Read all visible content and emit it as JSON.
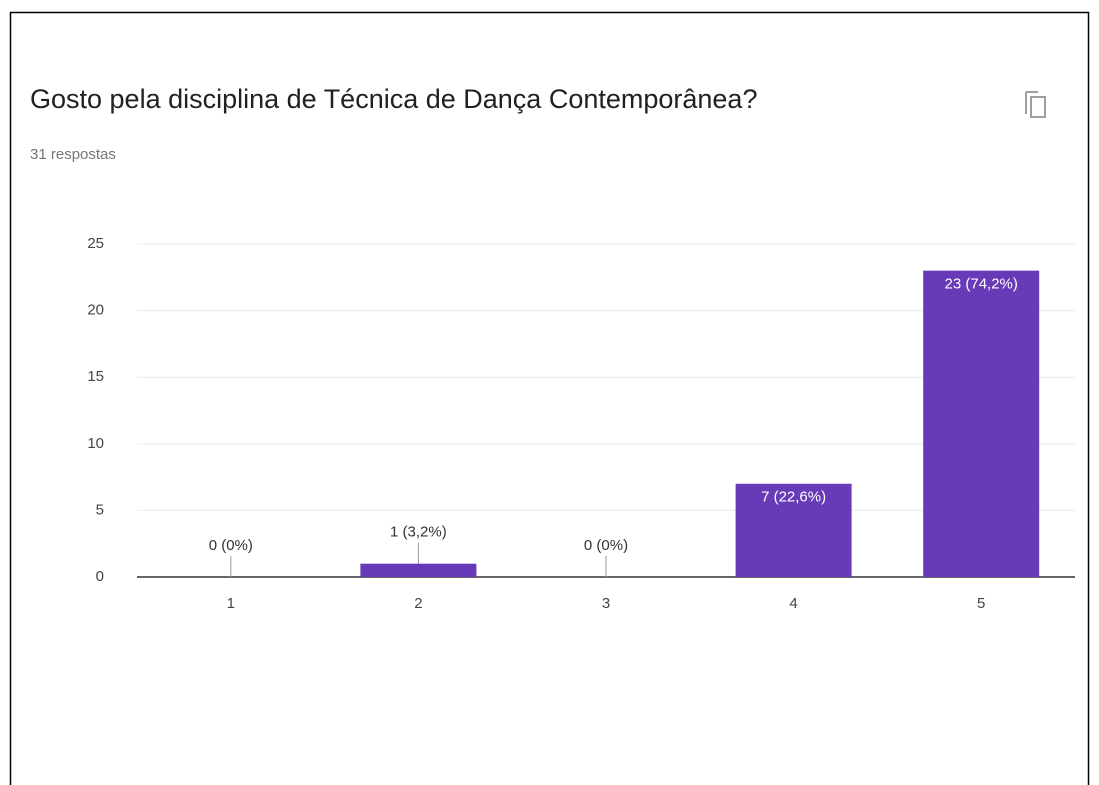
{
  "chart_data": {
    "type": "bar",
    "title": "Gosto pela disciplina de Técnica de Dança Contemporânea?",
    "subtitle": "31 respostas",
    "categories": [
      "1",
      "2",
      "3",
      "4",
      "5"
    ],
    "values": [
      0,
      1,
      0,
      7,
      23
    ],
    "value_labels": [
      "0 (0%)",
      "1 (3,2%)",
      "0 (0%)",
      "7 (22,6%)",
      "23 (74,2%)"
    ],
    "color": "#673ab7",
    "ylim": [
      0,
      25
    ],
    "yticks": [
      0,
      5,
      10,
      15,
      20,
      25
    ],
    "grid": true
  }
}
